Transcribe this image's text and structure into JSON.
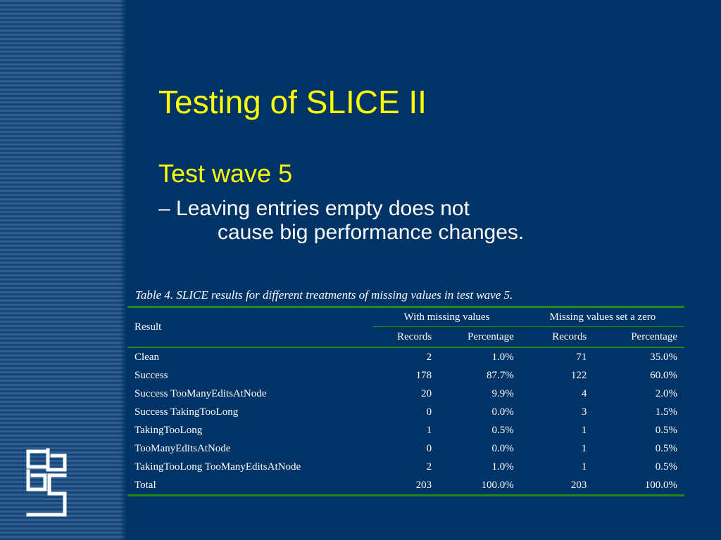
{
  "slide": {
    "title": "Testing of SLICE II",
    "subheading": "Test wave 5",
    "bullet_line1": "– Leaving entries empty does not",
    "bullet_line2": "cause big performance changes."
  },
  "table": {
    "caption": "Table 4. SLICE results for different treatments of missing values in test wave 5.",
    "result_header": "Result",
    "group_headers": [
      "With missing values",
      "Missing values set a zero"
    ],
    "column_headers": [
      "Records",
      "Percentage",
      "Records",
      "Percentage"
    ],
    "rows": [
      {
        "result": "Clean",
        "rec1": "2",
        "pct1": "1.0%",
        "rec2": "71",
        "pct2": "35.0%"
      },
      {
        "result": "Success",
        "rec1": "178",
        "pct1": "87.7%",
        "rec2": "122",
        "pct2": "60.0%"
      },
      {
        "result": "Success TooManyEditsAtNode",
        "rec1": "20",
        "pct1": "9.9%",
        "rec2": "4",
        "pct2": "2.0%"
      },
      {
        "result": "Success TakingTooLong",
        "rec1": "0",
        "pct1": "0.0%",
        "rec2": "3",
        "pct2": "1.5%"
      },
      {
        "result": "TakingTooLong",
        "rec1": "1",
        "pct1": "0.5%",
        "rec2": "1",
        "pct2": "0.5%"
      },
      {
        "result": "TooManyEditsAtNode",
        "rec1": "0",
        "pct1": "0.0%",
        "rec2": "1",
        "pct2": "0.5%"
      },
      {
        "result": "TakingTooLong TooManyEditsAtNode",
        "rec1": "2",
        "pct1": "1.0%",
        "rec2": "1",
        "pct2": "0.5%"
      },
      {
        "result": "Total",
        "rec1": "203",
        "pct1": "100.0%",
        "rec2": "203",
        "pct2": "100.0%"
      }
    ]
  },
  "logo": {
    "icon": "cbs-logo-icon"
  },
  "colors": {
    "background": "#003366",
    "title": "#ffff00",
    "rule": "#1a8a1a",
    "stripe": "#2f5f8f"
  }
}
